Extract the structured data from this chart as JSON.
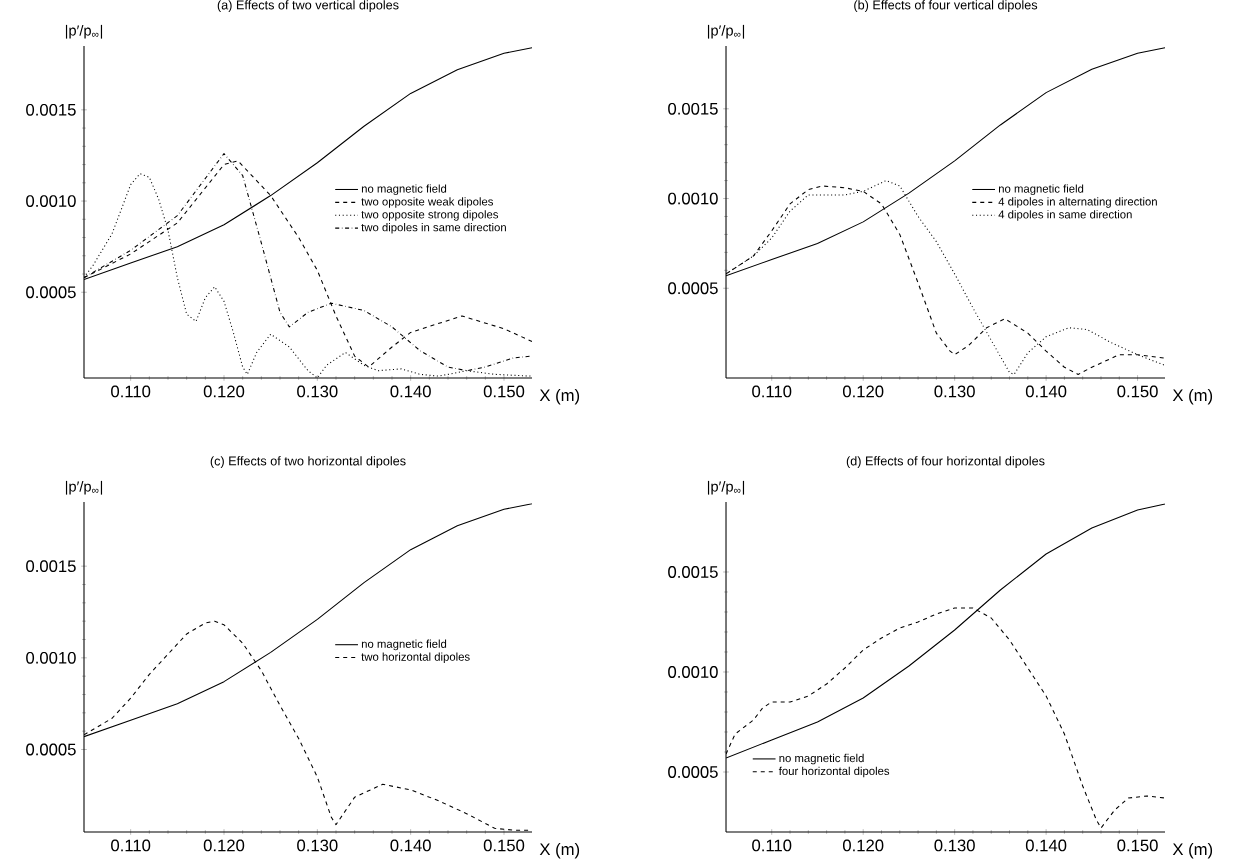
{
  "chart_data": [
    {
      "type": "line",
      "title": "(a) Effects of two vertical dipoles",
      "xlabel": "X (m)",
      "ylabel": "|p′/p$_{∞}$|",
      "legend": "right",
      "xlim": [
        0.105,
        0.153
      ],
      "ylim": [
        3e-05,
        0.00185
      ],
      "xticks": [
        {
          "value": 0.11,
          "label": "0.110"
        },
        {
          "value": 0.12,
          "label": "0.120"
        },
        {
          "value": 0.13,
          "label": "0.130"
        },
        {
          "value": 0.14,
          "label": "0.140"
        },
        {
          "value": 0.15,
          "label": "0.150"
        }
      ],
      "yticks": [
        {
          "value": 0.0005,
          "label": "0.0005"
        },
        {
          "value": 0.001,
          "label": "0.0010"
        },
        {
          "value": 0.0015,
          "label": "0.0015"
        }
      ],
      "series": [
        {
          "name": "no magnetic field",
          "color": "#000000",
          "line_style": "solid",
          "x": [
            0.105,
            0.11,
            0.115,
            0.12,
            0.125,
            0.13,
            0.135,
            0.14,
            0.145,
            0.15,
            0.153
          ],
          "values": [
            0.00057,
            0.00066,
            0.00075,
            0.00087,
            0.00103,
            0.00121,
            0.00141,
            0.00159,
            0.00172,
            0.00181,
            0.00184
          ]
        },
        {
          "name": "two opposite weak dipoles",
          "color": "#000000",
          "line_style": "dashed",
          "x": [
            0.105,
            0.11,
            0.115,
            0.12,
            0.1215,
            0.125,
            0.128,
            0.13,
            0.132,
            0.134,
            0.1355,
            0.138,
            0.14,
            0.1455,
            0.15,
            0.153
          ],
          "values": [
            0.00058,
            0.00071,
            0.00088,
            0.0012,
            0.00122,
            0.00103,
            0.0008,
            0.00062,
            0.00037,
            0.00015,
            9e-05,
            0.0002,
            0.00028,
            0.00037,
            0.0003,
            0.00023
          ]
        },
        {
          "name": "two opposite strong dipoles",
          "color": "#000000",
          "line_style": "dotted",
          "x": [
            0.105,
            0.106,
            0.108,
            0.11,
            0.111,
            0.112,
            0.113,
            0.114,
            0.115,
            0.116,
            0.117,
            0.118,
            0.119,
            0.12,
            0.121,
            0.122,
            0.1225,
            0.1235,
            0.125,
            0.127,
            0.129,
            0.13,
            0.131,
            0.133,
            0.135,
            0.1365,
            0.139,
            0.141,
            0.143,
            0.146,
            0.149,
            0.153
          ],
          "values": [
            0.00058,
            0.00065,
            0.00082,
            0.00109,
            0.00115,
            0.00113,
            0.00101,
            0.00084,
            0.00058,
            0.00038,
            0.00034,
            0.00047,
            0.00053,
            0.00045,
            0.00028,
            9e-05,
            5e-05,
            0.00017,
            0.00027,
            0.0002,
            7e-05,
            3e-05,
            0.0001,
            0.00017,
            0.0001,
            7e-05,
            8e-05,
            5e-05,
            4e-05,
            7e-05,
            5e-05,
            4e-05
          ]
        },
        {
          "name": "two dipoles in same direction",
          "color": "#000000",
          "line_style": "dashdot",
          "x": [
            0.105,
            0.11,
            0.115,
            0.12,
            0.122,
            0.124,
            0.126,
            0.127,
            0.129,
            0.1315,
            0.135,
            0.138,
            0.141,
            0.144,
            0.146,
            0.148,
            0.151,
            0.153
          ],
          "values": [
            0.00058,
            0.00073,
            0.00092,
            0.00126,
            0.00114,
            0.00077,
            0.00039,
            0.00031,
            0.00039,
            0.00044,
            0.0004,
            0.00031,
            0.00018,
            9e-05,
            7e-05,
            9e-05,
            0.00014,
            0.00015
          ]
        }
      ]
    },
    {
      "type": "line",
      "title": "(b) Effects of four vertical dipoles",
      "xlabel": "X (m)",
      "ylabel": "|p′/p$_{∞}$|",
      "legend": "right",
      "xlim": [
        0.105,
        0.153
      ],
      "ylim": [
        0.0,
        0.00185
      ],
      "xticks": [
        {
          "value": 0.11,
          "label": "0.110"
        },
        {
          "value": 0.12,
          "label": "0.120"
        },
        {
          "value": 0.13,
          "label": "0.130"
        },
        {
          "value": 0.14,
          "label": "0.140"
        },
        {
          "value": 0.15,
          "label": "0.150"
        }
      ],
      "yticks": [
        {
          "value": 0.0005,
          "label": "0.0005"
        },
        {
          "value": 0.001,
          "label": "0.0010"
        },
        {
          "value": 0.0015,
          "label": "0.0015"
        }
      ],
      "series": [
        {
          "name": "no magnetic field",
          "color": "#000000",
          "line_style": "solid",
          "x": [
            0.105,
            0.11,
            0.115,
            0.12,
            0.125,
            0.13,
            0.135,
            0.14,
            0.145,
            0.15,
            0.153
          ],
          "values": [
            0.00057,
            0.00066,
            0.00075,
            0.00087,
            0.00103,
            0.00121,
            0.00141,
            0.00159,
            0.00172,
            0.00181,
            0.00184
          ]
        },
        {
          "name": "4 dipoles in alternating direction",
          "color": "#000000",
          "line_style": "dashed",
          "x": [
            0.105,
            0.108,
            0.11,
            0.112,
            0.114,
            0.1155,
            0.118,
            0.12,
            0.122,
            0.124,
            0.126,
            0.128,
            0.1295,
            0.13,
            0.1315,
            0.1335,
            0.1355,
            0.138,
            0.14,
            0.142,
            0.1435,
            0.145,
            0.148,
            0.15,
            0.153
          ],
          "values": [
            0.00058,
            0.00068,
            0.00082,
            0.00097,
            0.00105,
            0.00107,
            0.00106,
            0.00104,
            0.00097,
            0.0008,
            0.00053,
            0.00025,
            0.00015,
            0.00013,
            0.00018,
            0.00028,
            0.00033,
            0.00025,
            0.00015,
            6e-05,
            2e-05,
            6e-05,
            0.00013,
            0.00013,
            0.00011
          ]
        },
        {
          "name": "4 dipoles in same direction",
          "color": "#000000",
          "line_style": "dotted",
          "x": [
            0.105,
            0.108,
            0.11,
            0.112,
            0.114,
            0.116,
            0.118,
            0.12,
            0.1225,
            0.124,
            0.126,
            0.128,
            0.13,
            0.132,
            0.134,
            0.136,
            0.1365,
            0.138,
            0.14,
            0.1425,
            0.1445,
            0.147,
            0.15,
            0.153
          ],
          "values": [
            0.00058,
            0.00068,
            0.00078,
            0.00093,
            0.00102,
            0.00102,
            0.00102,
            0.00104,
            0.0011,
            0.00107,
            0.0009,
            0.00076,
            0.00058,
            0.00039,
            0.00021,
            3e-05,
            2e-05,
            0.00014,
            0.00023,
            0.00028,
            0.00027,
            0.0002,
            0.00013,
            7e-05
          ]
        }
      ]
    },
    {
      "type": "line",
      "title": "(c) Effects of two horizontal dipoles",
      "xlabel": "X (m)",
      "ylabel": "|p′/p$_{∞}$|",
      "legend": "right",
      "xlim": [
        0.105,
        0.153
      ],
      "ylim": [
        5e-05,
        0.00185
      ],
      "xticks": [
        {
          "value": 0.11,
          "label": "0.110"
        },
        {
          "value": 0.12,
          "label": "0.120"
        },
        {
          "value": 0.13,
          "label": "0.130"
        },
        {
          "value": 0.14,
          "label": "0.140"
        },
        {
          "value": 0.15,
          "label": "0.150"
        }
      ],
      "yticks": [
        {
          "value": 0.0005,
          "label": "0.0005"
        },
        {
          "value": 0.001,
          "label": "0.0010"
        },
        {
          "value": 0.0015,
          "label": "0.0015"
        }
      ],
      "series": [
        {
          "name": "no magnetic field",
          "color": "#000000",
          "line_style": "solid",
          "x": [
            0.105,
            0.11,
            0.115,
            0.12,
            0.125,
            0.13,
            0.135,
            0.14,
            0.145,
            0.15,
            0.153
          ],
          "values": [
            0.00057,
            0.00066,
            0.00075,
            0.00087,
            0.00103,
            0.00121,
            0.00141,
            0.00159,
            0.00172,
            0.00181,
            0.00184
          ]
        },
        {
          "name": "two horizontal dipoles",
          "color": "#000000",
          "line_style": "dashed",
          "x": [
            0.105,
            0.108,
            0.11,
            0.112,
            0.114,
            0.116,
            0.118,
            0.119,
            0.12,
            0.122,
            0.124,
            0.126,
            0.128,
            0.13,
            0.1315,
            0.132,
            0.134,
            0.137,
            0.14,
            0.143,
            0.146,
            0.149,
            0.151,
            0.153
          ],
          "values": [
            0.00058,
            0.00067,
            0.00078,
            0.00091,
            0.00102,
            0.00113,
            0.00119,
            0.0012,
            0.00118,
            0.00108,
            0.00093,
            0.00074,
            0.00056,
            0.00035,
            0.00013,
            9e-05,
            0.00024,
            0.00031,
            0.00028,
            0.00022,
            0.00015,
            7e-05,
            6e-05,
            6e-05
          ]
        }
      ]
    },
    {
      "type": "line",
      "title": "(d) Effects of four horizontal dipoles",
      "xlabel": "X (m)",
      "ylabel": "|p′/p$_{∞}$|",
      "legend": "bottom left",
      "xlim": [
        0.105,
        0.153
      ],
      "ylim": [
        0.0002,
        0.00185
      ],
      "xticks": [
        {
          "value": 0.11,
          "label": "0.110"
        },
        {
          "value": 0.12,
          "label": "0.120"
        },
        {
          "value": 0.13,
          "label": "0.130"
        },
        {
          "value": 0.14,
          "label": "0.140"
        },
        {
          "value": 0.15,
          "label": "0.150"
        }
      ],
      "yticks": [
        {
          "value": 0.0005,
          "label": "0.0005"
        },
        {
          "value": 0.001,
          "label": "0.0010"
        },
        {
          "value": 0.0015,
          "label": "0.0015"
        }
      ],
      "series": [
        {
          "name": "no magnetic field",
          "color": "#000000",
          "line_style": "solid",
          "x": [
            0.105,
            0.11,
            0.115,
            0.12,
            0.125,
            0.13,
            0.135,
            0.14,
            0.145,
            0.15,
            0.153
          ],
          "values": [
            0.00057,
            0.00066,
            0.00075,
            0.00087,
            0.00103,
            0.00121,
            0.00141,
            0.00159,
            0.00172,
            0.00181,
            0.00184
          ]
        },
        {
          "name": "four horizontal dipoles",
          "color": "#000000",
          "line_style": "dashed",
          "x": [
            0.105,
            0.106,
            0.108,
            0.109,
            0.11,
            0.112,
            0.114,
            0.116,
            0.118,
            0.12,
            0.122,
            0.124,
            0.126,
            0.128,
            0.13,
            0.132,
            0.134,
            0.136,
            0.138,
            0.14,
            0.142,
            0.144,
            0.1455,
            0.146,
            0.1475,
            0.149,
            0.151,
            0.153
          ],
          "values": [
            0.00059,
            0.00069,
            0.00076,
            0.00082,
            0.00085,
            0.00085,
            0.00088,
            0.00094,
            0.00102,
            0.00111,
            0.00117,
            0.00122,
            0.00125,
            0.00129,
            0.00132,
            0.00132,
            0.00127,
            0.00116,
            0.00102,
            0.00088,
            0.00069,
            0.00043,
            0.00026,
            0.00022,
            0.00031,
            0.00037,
            0.00038,
            0.00037
          ]
        }
      ]
    }
  ]
}
